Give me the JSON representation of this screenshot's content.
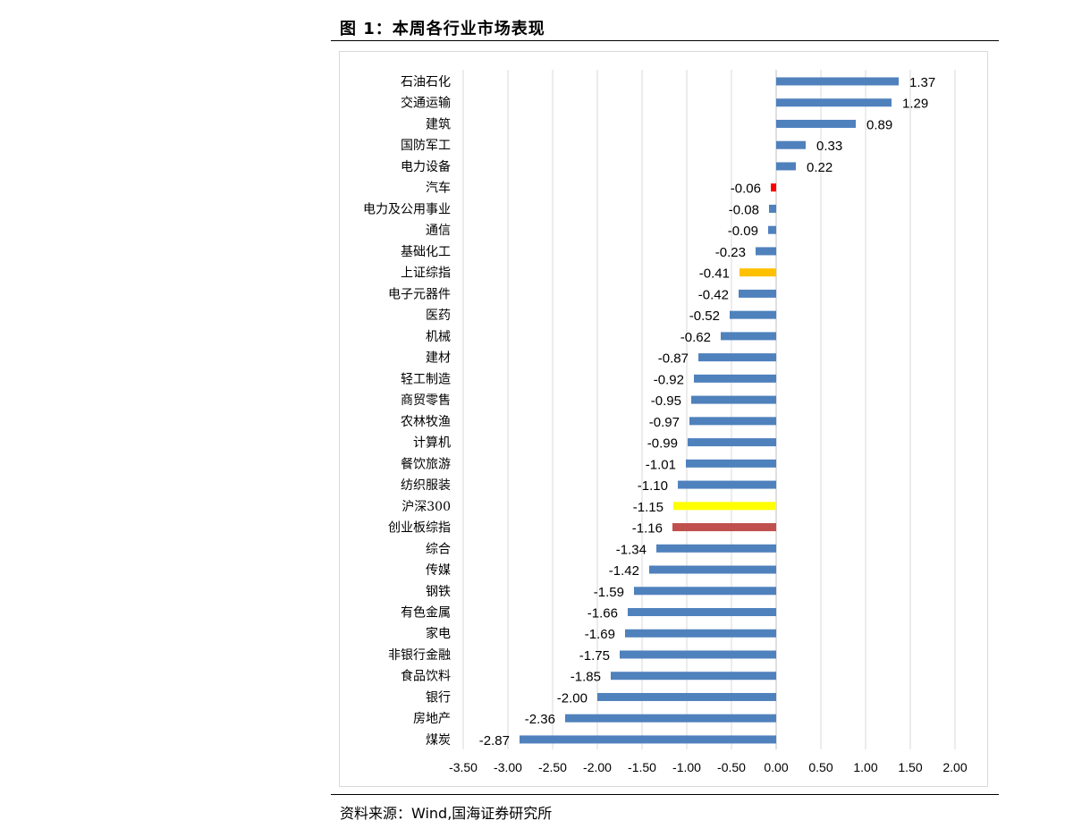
{
  "figure_title": "图 1：本周各行业市场表现",
  "source": "资料来源：Wind,国海证券研究所",
  "colors": {
    "default": "#4f81bd",
    "auto": "#ff0000",
    "sse": "#ffc000",
    "hs300": "#ffff00",
    "gem": "#c0504d",
    "grid": "#d9d9d9"
  },
  "chart_data": {
    "type": "bar",
    "orientation": "horizontal",
    "title": "本周各行业市场表现",
    "xlim": [
      -3.5,
      2.0
    ],
    "xticks": [
      "-3.50",
      "-3.00",
      "-2.50",
      "-2.00",
      "-1.50",
      "-1.00",
      "-0.50",
      "0.00",
      "0.50",
      "1.00",
      "1.50",
      "2.00"
    ],
    "tick_values": [
      -3.5,
      -3.0,
      -2.5,
      -2.0,
      -1.5,
      -1.0,
      -0.5,
      0.0,
      0.5,
      1.0,
      1.5,
      2.0
    ],
    "grid": true,
    "legend": "none",
    "categories": [
      "石油石化",
      "交通运输",
      "建筑",
      "国防军工",
      "电力设备",
      "汽车",
      "电力及公用事业",
      "通信",
      "基础化工",
      "上证综指",
      "电子元器件",
      "医药",
      "机械",
      "建材",
      "轻工制造",
      "商贸零售",
      "农林牧渔",
      "计算机",
      "餐饮旅游",
      "纺织服装",
      "沪深300",
      "创业板综指",
      "综合",
      "传媒",
      "钢铁",
      "有色金属",
      "家电",
      "非银行金融",
      "食品饮料",
      "银行",
      "房地产",
      "煤炭"
    ],
    "values": [
      1.37,
      1.29,
      0.89,
      0.33,
      0.22,
      -0.06,
      -0.08,
      -0.09,
      -0.23,
      -0.41,
      -0.42,
      -0.52,
      -0.62,
      -0.87,
      -0.92,
      -0.95,
      -0.97,
      -0.99,
      -1.01,
      -1.1,
      -1.15,
      -1.16,
      -1.34,
      -1.42,
      -1.59,
      -1.66,
      -1.69,
      -1.75,
      -1.85,
      -2.0,
      -2.36,
      -2.87
    ],
    "value_labels": [
      "1.37",
      "1.29",
      "0.89",
      "0.33",
      "0.22",
      "-0.06",
      "-0.08",
      "-0.09",
      "-0.23",
      "-0.41",
      "-0.42",
      "-0.52",
      "-0.62",
      "-0.87",
      "-0.92",
      "-0.95",
      "-0.97",
      "-0.99",
      "-1.01",
      "-1.10",
      "-1.15",
      "-1.16",
      "-1.34",
      "-1.42",
      "-1.59",
      "-1.66",
      "-1.69",
      "-1.75",
      "-1.85",
      "-2.00",
      "-2.36",
      "-2.87"
    ],
    "highlight": {
      "汽车": "auto",
      "上证综指": "sse",
      "沪深300": "hs300",
      "创业板综指": "gem"
    }
  }
}
